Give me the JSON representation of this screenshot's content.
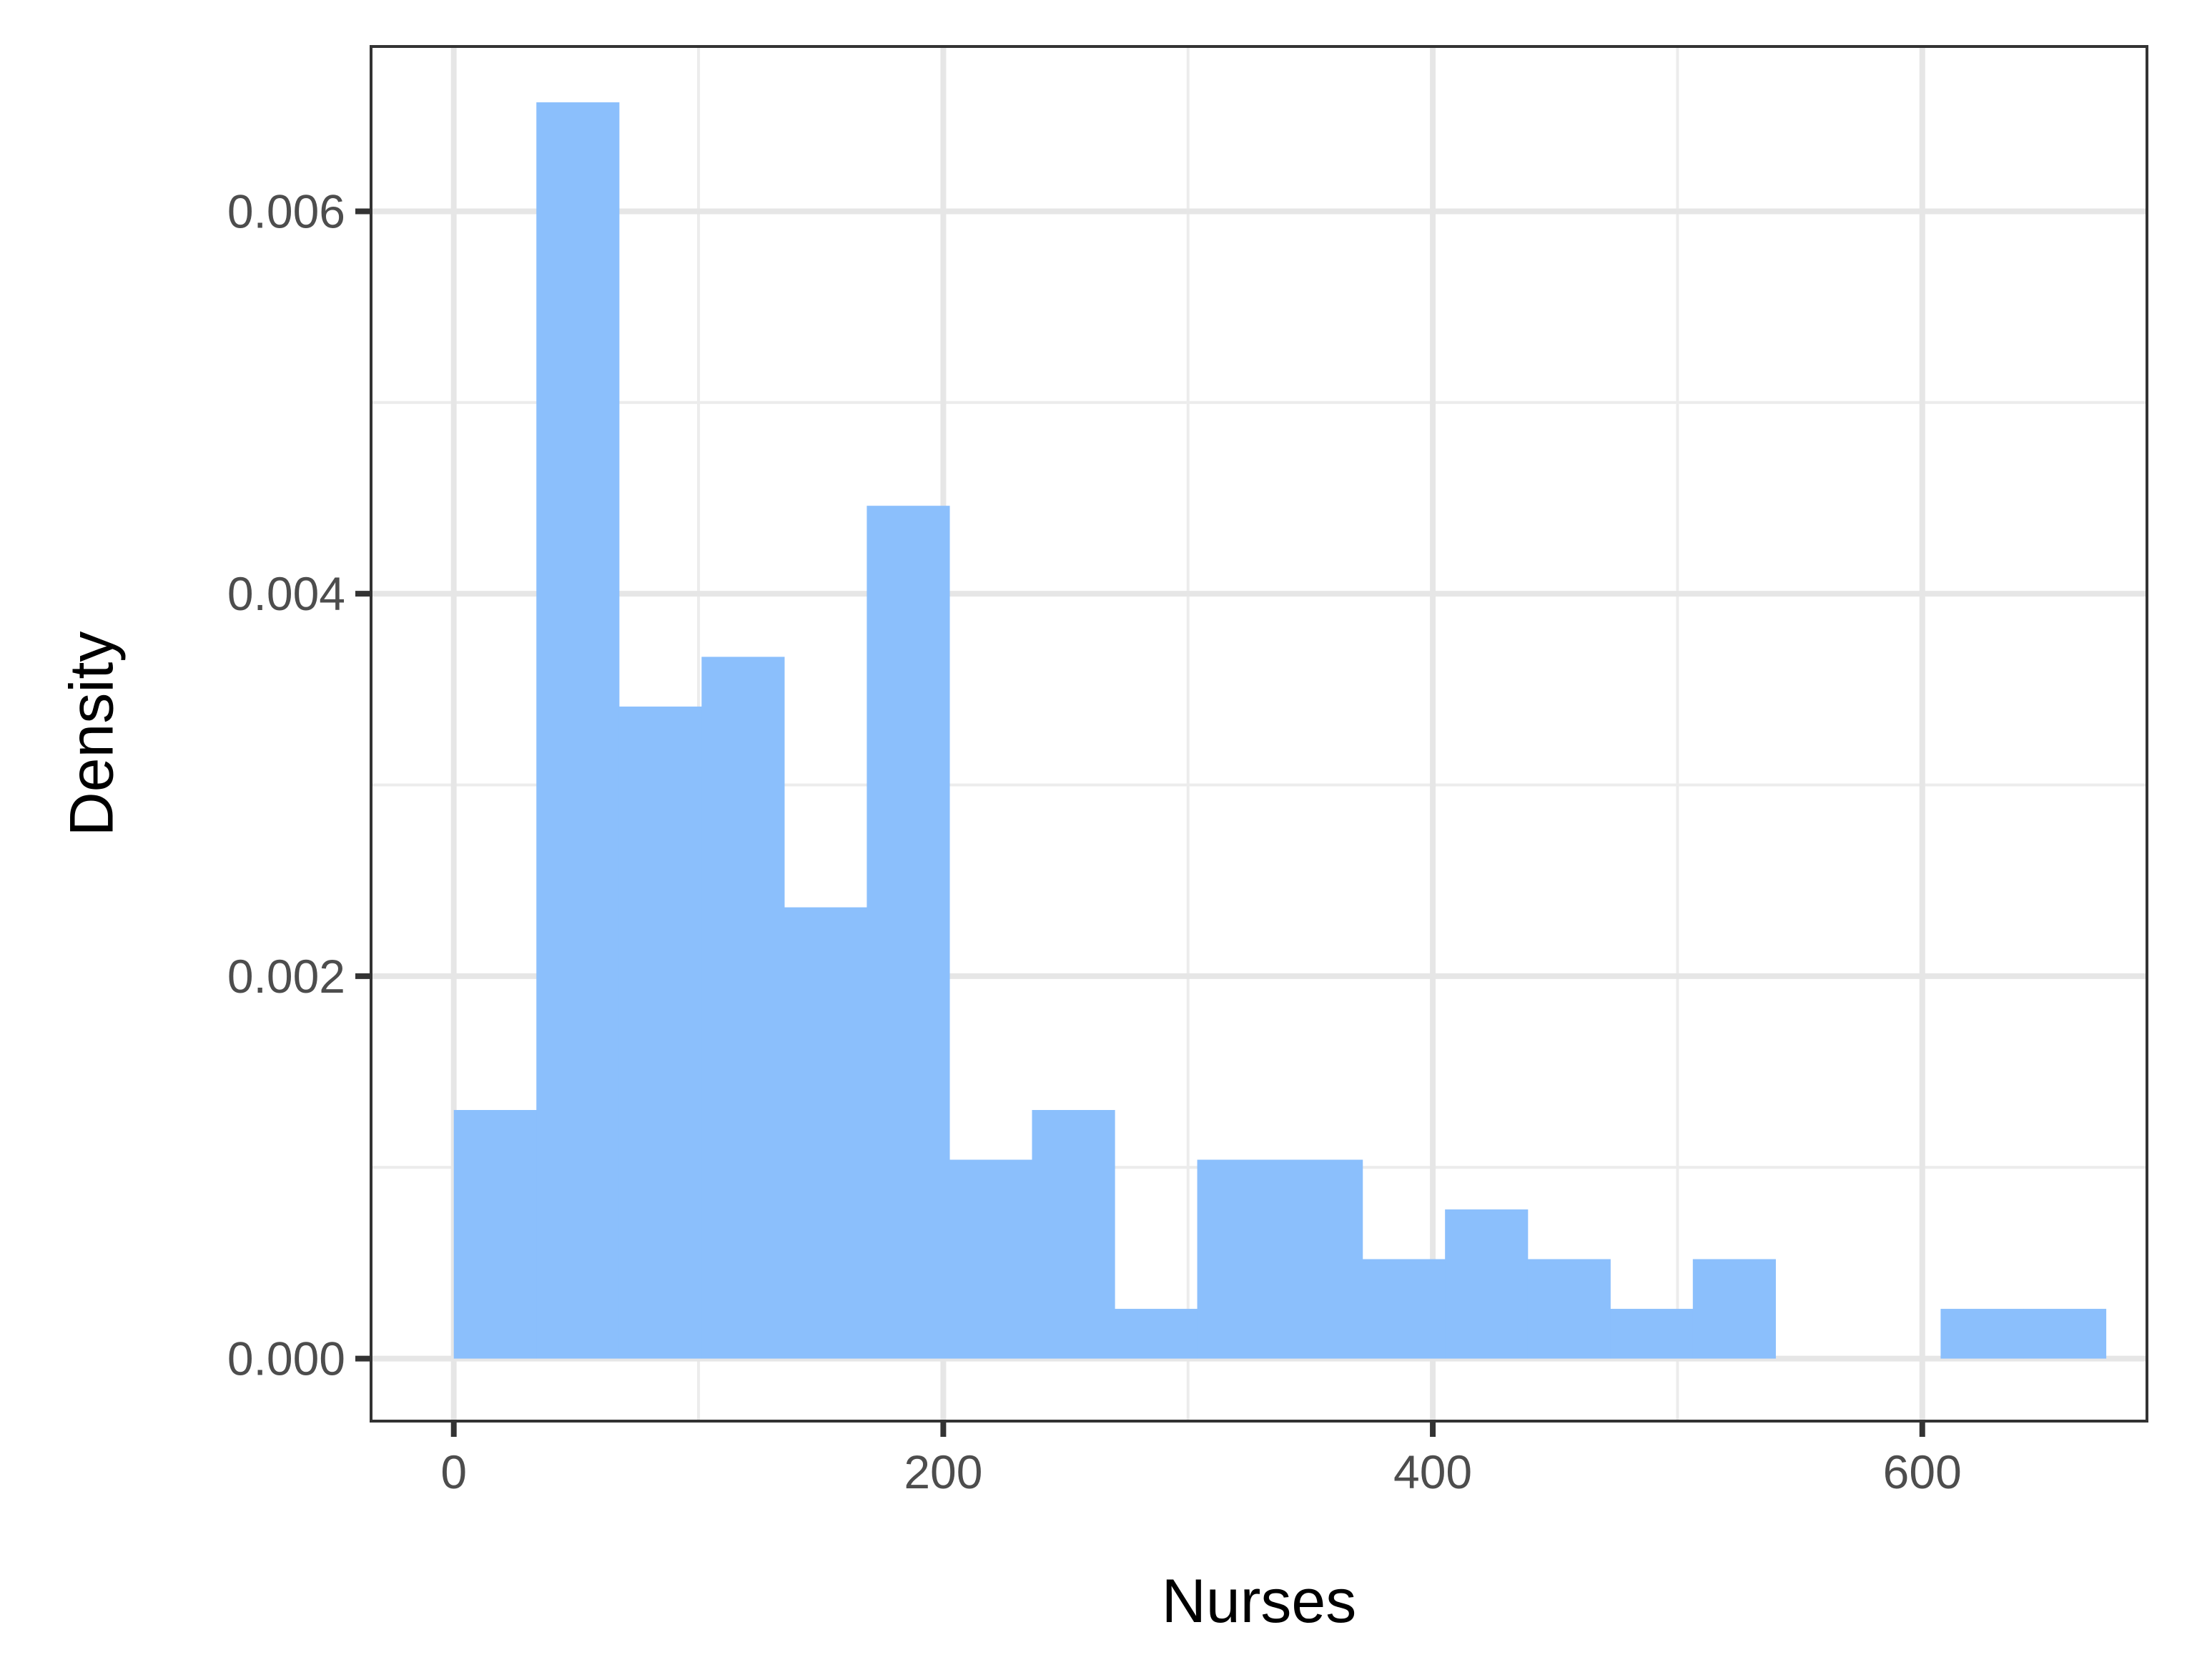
{
  "chart_data": {
    "type": "bar",
    "xlabel": "Nurses",
    "ylabel": "Density",
    "xlim": [
      -33.8,
      691.8
    ],
    "ylim": [
      -0.000327,
      0.006862
    ],
    "x_ticks": [
      0,
      200,
      400,
      600
    ],
    "x_tick_labels": [
      "0",
      "200",
      "400",
      "600"
    ],
    "x_minor_ticks": [
      100,
      300,
      500
    ],
    "y_ticks": [
      0,
      0.002,
      0.004,
      0.006
    ],
    "y_tick_labels": [
      "0.000",
      "0.002",
      "0.004",
      "0.006"
    ],
    "y_minor_ticks": [
      0.001,
      0.003,
      0.005
    ],
    "grid": true,
    "bin_width": 33.75,
    "bins": [
      {
        "x0": 0,
        "x1": 33.75,
        "density": 0.0013
      },
      {
        "x0": 33.75,
        "x1": 67.5,
        "density": 0.00657
      },
      {
        "x0": 67.5,
        "x1": 101.25,
        "density": 0.00341
      },
      {
        "x0": 101.25,
        "x1": 135,
        "density": 0.00367
      },
      {
        "x0": 135,
        "x1": 168.75,
        "density": 0.00236
      },
      {
        "x0": 168.75,
        "x1": 202.5,
        "density": 0.00446
      },
      {
        "x0": 202.5,
        "x1": 236.25,
        "density": 0.00104
      },
      {
        "x0": 236.25,
        "x1": 270,
        "density": 0.0013
      },
      {
        "x0": 270,
        "x1": 303.75,
        "density": 0.00026
      },
      {
        "x0": 303.75,
        "x1": 337.5,
        "density": 0.00104
      },
      {
        "x0": 337.5,
        "x1": 371.25,
        "density": 0.00104
      },
      {
        "x0": 371.25,
        "x1": 405,
        "density": 0.00052
      },
      {
        "x0": 405,
        "x1": 438.75,
        "density": 0.00078
      },
      {
        "x0": 438.75,
        "x1": 472.5,
        "density": 0.00052
      },
      {
        "x0": 472.5,
        "x1": 506.25,
        "density": 0.00026
      },
      {
        "x0": 506.25,
        "x1": 540,
        "density": 0.00052
      },
      {
        "x0": 540,
        "x1": 573.75,
        "density": 0
      },
      {
        "x0": 573.75,
        "x1": 607.5,
        "density": 0
      },
      {
        "x0": 607.5,
        "x1": 641.25,
        "density": 0.00026
      },
      {
        "x0": 641.25,
        "x1": 675,
        "density": 0.00026
      }
    ],
    "colors": {
      "bar_fill": "#8bbffc",
      "panel_border": "#333333",
      "grid_major": "#e6e6e6",
      "grid_minor": "#ececec",
      "tick_label": "#4d4d4d",
      "axis_title": "#000000"
    }
  }
}
